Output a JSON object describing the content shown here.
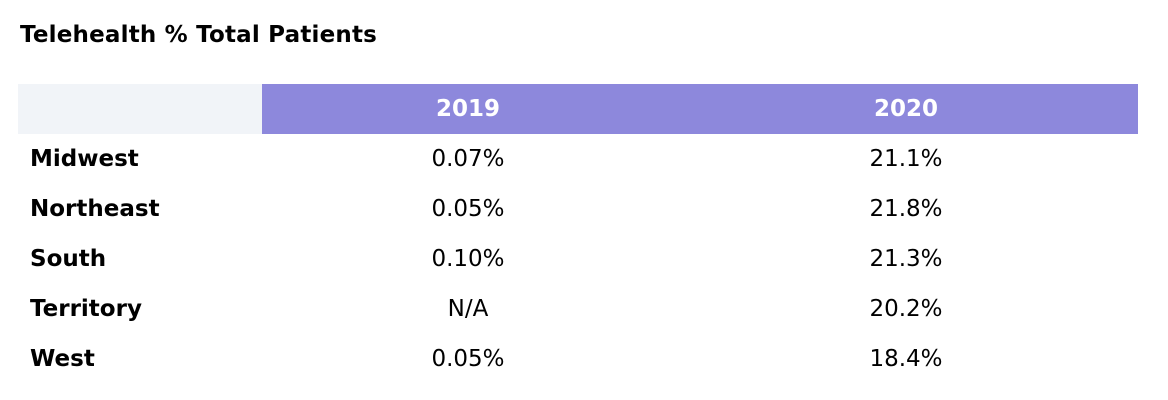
{
  "chart_data": {
    "type": "table",
    "title": "Telehealth % Total Patients",
    "columns": [
      "",
      "2019",
      "2020"
    ],
    "rows": [
      {
        "label": "Midwest",
        "values": [
          "0.07%",
          "21.1%"
        ]
      },
      {
        "label": "Northeast",
        "values": [
          "0.05%",
          "21.8%"
        ]
      },
      {
        "label": "South",
        "values": [
          "0.10%",
          "21.3%"
        ]
      },
      {
        "label": "Territory",
        "values": [
          "N/A",
          "20.2%"
        ]
      },
      {
        "label": "West",
        "values": [
          "0.05%",
          "18.4%"
        ]
      }
    ]
  },
  "colors": {
    "header_bg": "#8d88dc",
    "corner_bg": "#f1f4f8",
    "header_text": "#ffffff"
  }
}
